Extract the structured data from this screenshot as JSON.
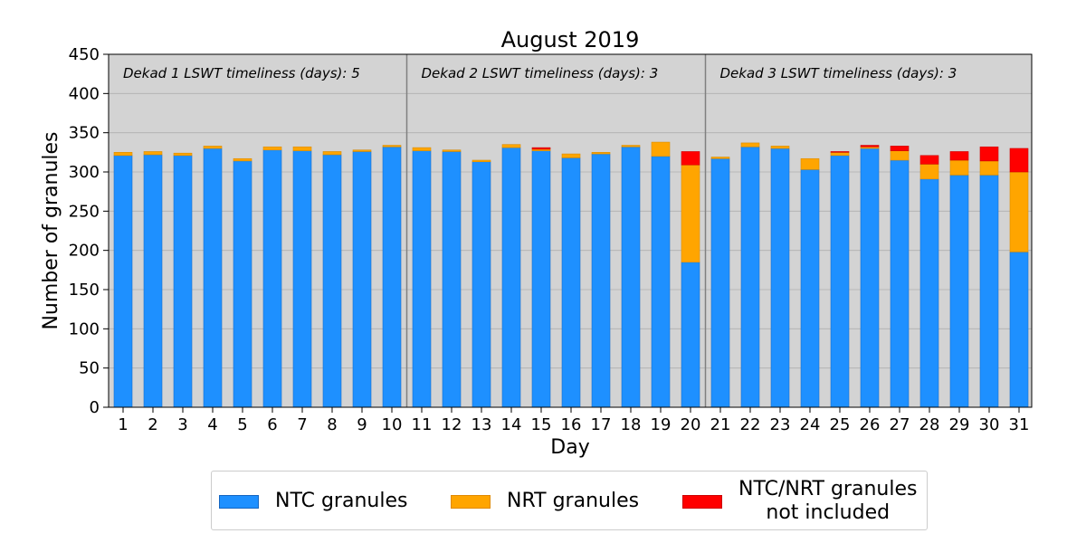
{
  "chart_data": {
    "type": "bar",
    "stacked": true,
    "title": "August 2019",
    "xlabel": "Day",
    "ylabel": "Number of granules",
    "ylim": [
      0,
      450
    ],
    "yticks": [
      0,
      50,
      100,
      150,
      200,
      250,
      300,
      350,
      400,
      450
    ],
    "grid": "horizontal",
    "background": "#d3d3d3",
    "categories": [
      "1",
      "2",
      "3",
      "4",
      "5",
      "6",
      "7",
      "8",
      "9",
      "10",
      "11",
      "12",
      "13",
      "14",
      "15",
      "16",
      "17",
      "18",
      "19",
      "20",
      "21",
      "22",
      "23",
      "24",
      "25",
      "26",
      "27",
      "28",
      "29",
      "30",
      "31"
    ],
    "series": [
      {
        "name": "NTC granules",
        "color": "#1e90ff",
        "values": [
          321,
          322,
          321,
          330,
          314,
          328,
          327,
          322,
          326,
          332,
          327,
          326,
          313,
          331,
          327,
          318,
          323,
          332,
          320,
          185,
          317,
          332,
          330,
          303,
          321,
          330,
          315,
          291,
          296,
          296,
          198
        ]
      },
      {
        "name": "NRT granules",
        "color": "#ffa500",
        "values": [
          4,
          4,
          3,
          3,
          3,
          4,
          5,
          4,
          2,
          2,
          4,
          2,
          2,
          4,
          2,
          5,
          2,
          2,
          18,
          124,
          2,
          5,
          3,
          14,
          4,
          2,
          12,
          19,
          19,
          18,
          102
        ]
      },
      {
        "name": "NTC/NRT granules\nnot included",
        "color": "#ff0000",
        "values": [
          0,
          0,
          0,
          0,
          0,
          0,
          0,
          0,
          0,
          0,
          0,
          0,
          0,
          0,
          2,
          0,
          0,
          0,
          0,
          17,
          0,
          0,
          0,
          0,
          1,
          2,
          6,
          11,
          11,
          18,
          30
        ]
      }
    ],
    "dividers_after": [
      10,
      20
    ],
    "annotations": [
      "Dekad 1 LSWT timeliness (days): 5",
      "Dekad 2 LSWT timeliness (days): 3",
      "Dekad 3 LSWT timeliness (days): 3"
    ],
    "legend_position": "bottom"
  }
}
